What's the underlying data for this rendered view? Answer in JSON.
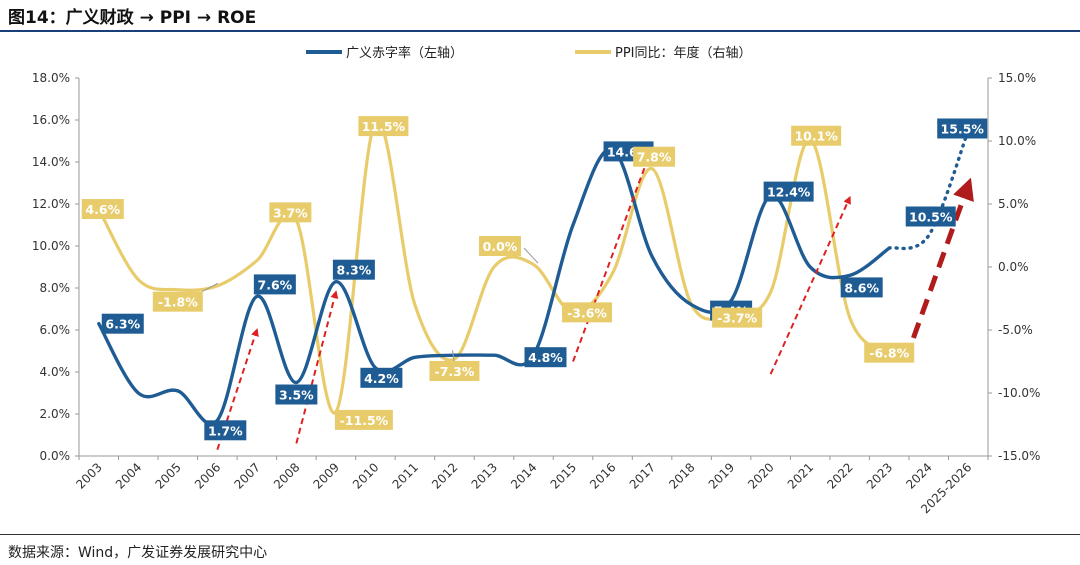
{
  "figure": {
    "title": "图14：广义财政 → PPI → ROE",
    "source": "数据来源：Wind，广发证券发展研究中心"
  },
  "colors": {
    "deficit": "#1f5c94",
    "ppi": "#e8cc6c",
    "arrow": "#e02020",
    "big_arrow": "#b01c1c",
    "title_rule": "#1a3f77"
  },
  "chart_data": {
    "type": "line",
    "categories": [
      "2003",
      "2004",
      "2005",
      "2006",
      "2007",
      "2008",
      "2009",
      "2010",
      "2011",
      "2012",
      "2013",
      "2014",
      "2015",
      "2016",
      "2017",
      "2018",
      "2019",
      "2020",
      "2021",
      "2022",
      "2023",
      "2024",
      "2025-2026"
    ],
    "legend_position": "top",
    "series": [
      {
        "name": "广义赤字率（左轴）",
        "axis": "left",
        "style": "smooth",
        "values": [
          6.3,
          3.0,
          3.1,
          1.7,
          7.6,
          3.5,
          8.3,
          4.2,
          4.7,
          4.8,
          4.8,
          4.8,
          11.0,
          14.6,
          9.5,
          7.2,
          7.4,
          12.4,
          9.0,
          8.6,
          9.9,
          null,
          null
        ],
        "projection": [
          {
            "category": "2023",
            "value": 9.9
          },
          {
            "category": "2024",
            "value": 10.5
          },
          {
            "category": "2025-2026",
            "value": 15.5
          }
        ]
      },
      {
        "name": "PPI同比：年度（右轴）",
        "axis": "right",
        "style": "smooth",
        "values": [
          4.6,
          -1.0,
          -1.8,
          -1.5,
          0.5,
          3.7,
          -11.5,
          11.5,
          -3.0,
          -7.3,
          0.0,
          0.2,
          -3.6,
          -0.5,
          7.8,
          -3.0,
          -3.7,
          -2.0,
          10.1,
          -4.0,
          -6.8,
          null,
          null
        ]
      }
    ],
    "data_labels": [
      {
        "series": 0,
        "category": "2003",
        "text": "6.3%"
      },
      {
        "series": 0,
        "category": "2006",
        "text": "1.7%"
      },
      {
        "series": 0,
        "category": "2007",
        "text": "7.6%"
      },
      {
        "series": 0,
        "category": "2008",
        "text": "3.5%"
      },
      {
        "series": 0,
        "category": "2009",
        "text": "8.3%"
      },
      {
        "series": 0,
        "category": "2010",
        "text": "4.2%"
      },
      {
        "series": 0,
        "category": "2014",
        "text": "4.8%"
      },
      {
        "series": 0,
        "category": "2016",
        "text": "14.6%"
      },
      {
        "series": 0,
        "category": "2019",
        "text": "7.4%"
      },
      {
        "series": 0,
        "category": "2020",
        "text": "12.4%"
      },
      {
        "series": 0,
        "category": "2022",
        "text": "8.6%"
      },
      {
        "series": 0,
        "category": "2024",
        "text": "10.5%"
      },
      {
        "series": 0,
        "category": "2025-2026",
        "text": "15.5%"
      },
      {
        "series": 1,
        "category": "2003",
        "text": "4.6%"
      },
      {
        "series": 1,
        "category": "2005",
        "text": "-1.8%"
      },
      {
        "series": 1,
        "category": "2008",
        "text": "3.7%"
      },
      {
        "series": 1,
        "category": "2009",
        "text": "-11.5%"
      },
      {
        "series": 1,
        "category": "2010",
        "text": "11.5%"
      },
      {
        "series": 1,
        "category": "2012",
        "text": "-7.3%"
      },
      {
        "series": 1,
        "category": "2013",
        "text": "0.0%"
      },
      {
        "series": 1,
        "category": "2015",
        "text": "-3.6%"
      },
      {
        "series": 1,
        "category": "2017",
        "text": "7.8%"
      },
      {
        "series": 1,
        "category": "2019",
        "text": "-3.7%"
      },
      {
        "series": 1,
        "category": "2021",
        "text": "10.1%"
      },
      {
        "series": 1,
        "category": "2023",
        "text": "-6.8%"
      }
    ],
    "y_left": {
      "min": 0,
      "max": 18,
      "step": 2,
      "tick_labels": [
        "0.0%",
        "2.0%",
        "4.0%",
        "6.0%",
        "8.0%",
        "10.0%",
        "12.0%",
        "14.0%",
        "16.0%",
        "18.0%"
      ]
    },
    "y_right": {
      "min": -15,
      "max": 15,
      "step": 5,
      "tick_labels": [
        "-15.0%",
        "-10.0%",
        "-5.0%",
        "0.0%",
        "5.0%",
        "10.0%",
        "15.0%"
      ]
    },
    "annotations": {
      "trend_arrows": [
        {
          "from": [
            "2006",
            -14.5
          ],
          "to": [
            "2007",
            -5.0
          ]
        },
        {
          "from": [
            "2008",
            -14.0
          ],
          "to": [
            "2009",
            -2.0
          ]
        },
        {
          "from": [
            "2015",
            -7.5
          ],
          "to": [
            "2017",
            9.5
          ]
        },
        {
          "from": [
            "2020",
            -8.5
          ],
          "to": [
            "2022",
            5.5
          ]
        }
      ],
      "forecast_arrow": {
        "from": [
          "2023.4",
          -7.5
        ],
        "to": [
          "2025-2026",
          6.5
        ]
      }
    }
  }
}
